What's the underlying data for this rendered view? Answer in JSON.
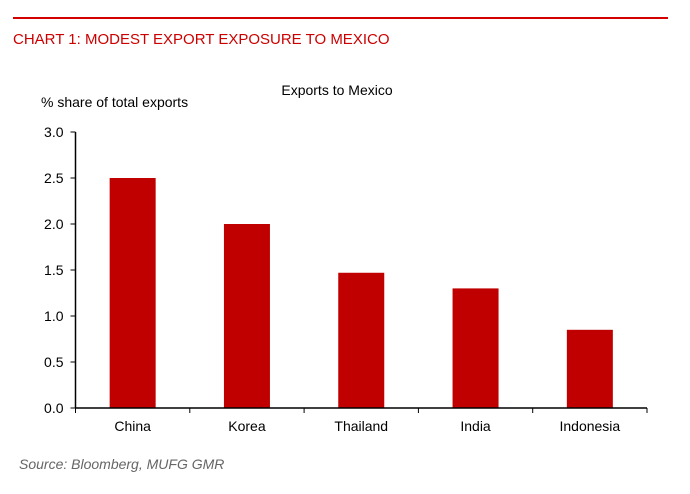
{
  "header": {
    "title": "CHART 1: MODEST EXPORT EXPOSURE TO MEXICO"
  },
  "footer": {
    "source": "Source: Bloomberg, MUFG GMR"
  },
  "chart_data": {
    "type": "bar",
    "title": "Exports to Mexico",
    "ylabel": "% share of total exports",
    "xlabel": "",
    "categories": [
      "China",
      "Korea",
      "Thailand",
      "India",
      "Indonesia"
    ],
    "values": [
      2.5,
      2.0,
      1.47,
      1.3,
      0.85
    ],
    "ylim": [
      0,
      3.0
    ],
    "yticks": [
      "0.0",
      "0.5",
      "1.0",
      "1.5",
      "2.0",
      "2.5",
      "3.0"
    ],
    "grid": false,
    "bar_color": "#c00000",
    "title_color": "#cc0000"
  }
}
